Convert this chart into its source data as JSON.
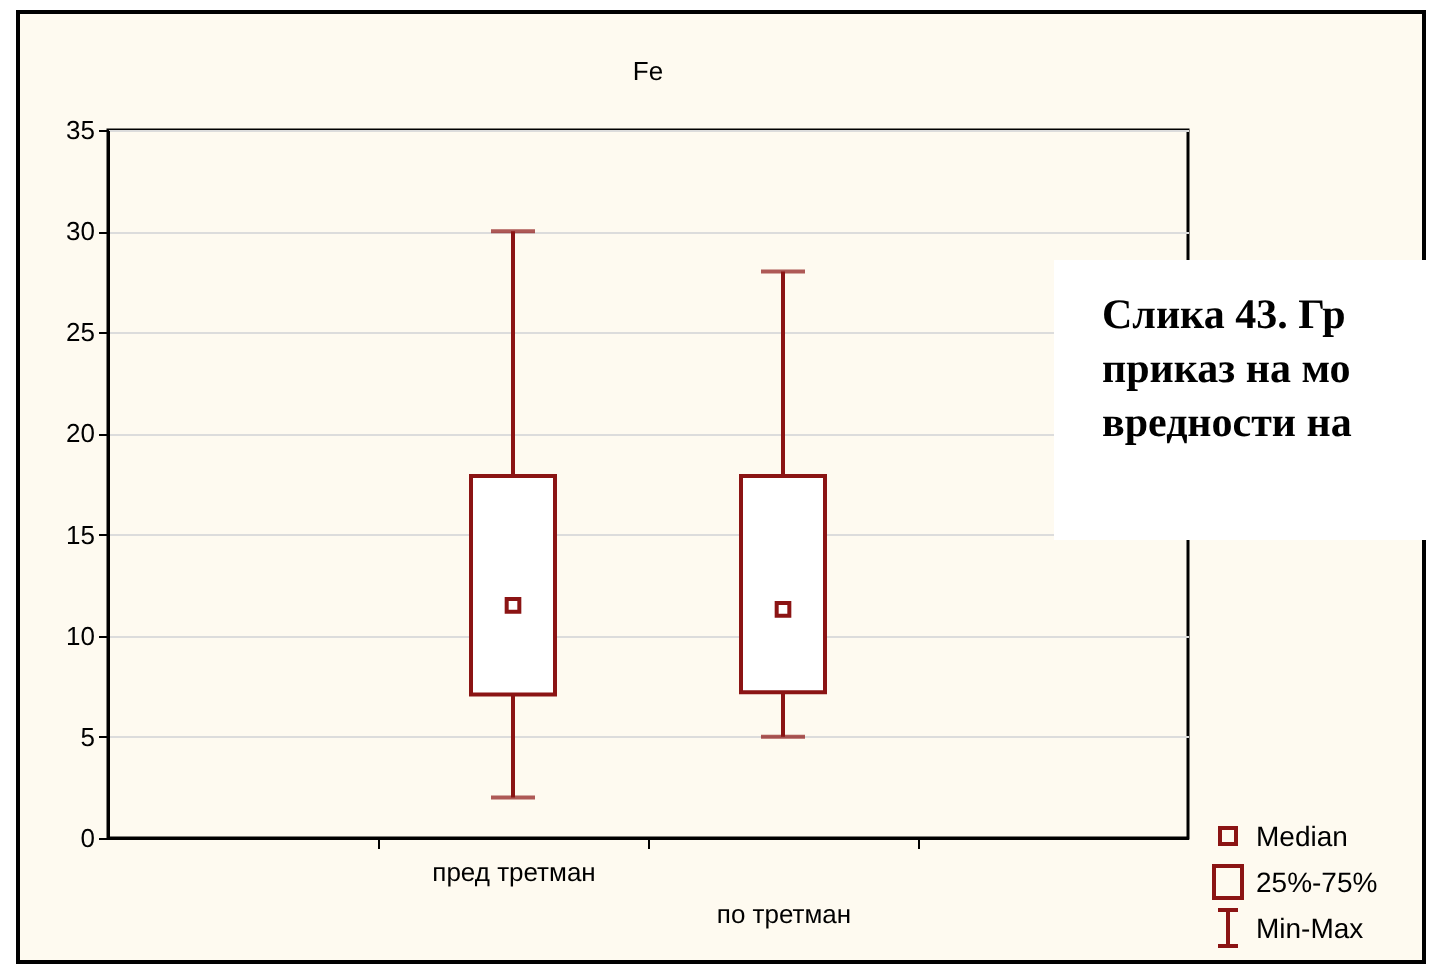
{
  "chart_data": {
    "type": "box",
    "title": "Fe",
    "categories": [
      "пред третман",
      "по третман"
    ],
    "series": [
      {
        "color": "#8b1414",
        "boxes": [
          {
            "low": 2,
            "q1": 7.1,
            "median": 11.5,
            "q3": 17.9,
            "high": 30
          },
          {
            "low": 5,
            "q1": 7.2,
            "median": 11.3,
            "q3": 17.9,
            "high": 28
          }
        ]
      }
    ],
    "ylim": [
      0,
      35
    ],
    "yticks": [
      0,
      5,
      10,
      15,
      20,
      25,
      30,
      35
    ],
    "grid": "y",
    "marker": "square",
    "annotations": [
      "Слика 43. Гр",
      "приказ на мо",
      "вредности на",
      "Median",
      "25%-75%",
      "Min-Max"
    ]
  }
}
